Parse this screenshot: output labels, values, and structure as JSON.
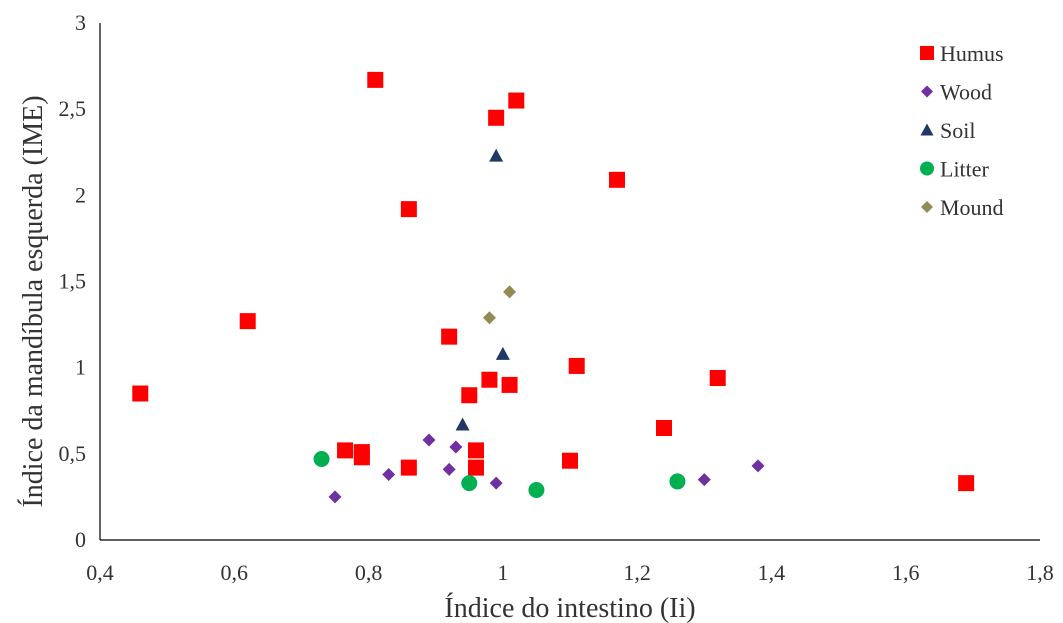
{
  "chart_data": {
    "type": "scatter",
    "xlabel": "Índice do intestino (Ii)",
    "ylabel": "Índice da mandíbula esquerda (IME)",
    "xlim": [
      0.4,
      1.8
    ],
    "ylim": [
      0,
      3
    ],
    "x_ticks": [
      "0,4",
      "0,6",
      "0,8",
      "1",
      "1,2",
      "1,4",
      "1,6",
      "1,8"
    ],
    "y_ticks": [
      "0",
      "0,5",
      "1",
      "1,5",
      "2",
      "2,5",
      "3"
    ],
    "grid": false,
    "legend_position": "top-right",
    "series": [
      {
        "name": "Humus",
        "marker": "square",
        "color": "#ff0000",
        "points": [
          [
            0.46,
            0.85
          ],
          [
            0.62,
            1.27
          ],
          [
            0.765,
            0.52
          ],
          [
            0.79,
            0.48
          ],
          [
            0.79,
            0.51
          ],
          [
            0.81,
            2.67
          ],
          [
            0.86,
            1.92
          ],
          [
            0.86,
            0.42
          ],
          [
            0.92,
            1.18
          ],
          [
            0.95,
            0.84
          ],
          [
            0.96,
            0.52
          ],
          [
            0.96,
            0.42
          ],
          [
            0.98,
            0.93
          ],
          [
            0.99,
            2.45
          ],
          [
            1.01,
            0.9
          ],
          [
            1.02,
            2.55
          ],
          [
            1.1,
            0.46
          ],
          [
            1.11,
            1.01
          ],
          [
            1.17,
            2.09
          ],
          [
            1.24,
            0.65
          ],
          [
            1.32,
            0.94
          ],
          [
            1.69,
            0.33
          ]
        ]
      },
      {
        "name": "Wood",
        "marker": "diamond",
        "color": "#7030a0",
        "points": [
          [
            0.75,
            0.25
          ],
          [
            0.83,
            0.38
          ],
          [
            0.89,
            0.58
          ],
          [
            0.92,
            0.41
          ],
          [
            0.93,
            0.54
          ],
          [
            0.99,
            0.33
          ],
          [
            1.3,
            0.35
          ],
          [
            1.38,
            0.43
          ]
        ]
      },
      {
        "name": "Soil",
        "marker": "triangle",
        "color": "#1f3864",
        "points": [
          [
            0.94,
            0.67
          ],
          [
            0.99,
            2.23
          ],
          [
            1.0,
            1.08
          ]
        ]
      },
      {
        "name": "Litter",
        "marker": "circle",
        "color": "#00b050",
        "points": [
          [
            0.73,
            0.47
          ],
          [
            0.95,
            0.33
          ],
          [
            1.05,
            0.29
          ],
          [
            1.26,
            0.34
          ]
        ]
      },
      {
        "name": "Mound",
        "marker": "diamond",
        "color": "#948a54",
        "points": [
          [
            0.98,
            1.29
          ],
          [
            1.01,
            1.44
          ]
        ]
      }
    ]
  }
}
